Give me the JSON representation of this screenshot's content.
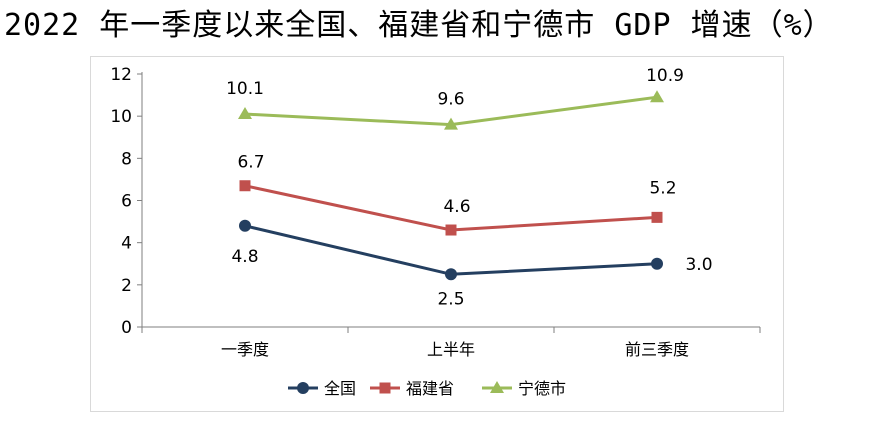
{
  "page": {
    "title": "2022 年一季度以来全国、福建省和宁德市 GDP 增速（%）"
  },
  "chart_data": {
    "type": "line",
    "title": "2022 年一季度以来全国、福建省和宁德市 GDP 增速（%）",
    "xlabel": "",
    "ylabel": "",
    "categories": [
      "一季度",
      "上半年",
      "前三季度"
    ],
    "ylim": [
      0,
      12
    ],
    "yticks": [
      "0",
      "2",
      "4",
      "6",
      "8",
      "10",
      "12"
    ],
    "grid": false,
    "legend_position": "bottom",
    "series": [
      {
        "name": "全国",
        "values": [
          4.8,
          2.5,
          3.0
        ],
        "labels": [
          "4.8",
          "2.5",
          "3.0"
        ],
        "color": "#243f60",
        "marker": "circle"
      },
      {
        "name": "福建省",
        "values": [
          6.7,
          4.6,
          5.2
        ],
        "labels": [
          "6.7",
          "4.6",
          "5.2"
        ],
        "color": "#c0504d",
        "marker": "square"
      },
      {
        "name": "宁德市",
        "values": [
          10.1,
          9.6,
          10.9
        ],
        "labels": [
          "10.1",
          "9.6",
          "10.9"
        ],
        "color": "#9bbb59",
        "marker": "triangle"
      }
    ]
  }
}
